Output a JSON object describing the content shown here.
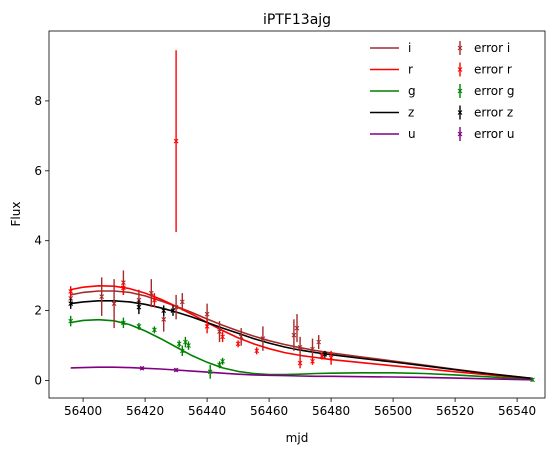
{
  "chart_data": {
    "type": "line",
    "title": "iPTF13ajg",
    "xlabel": "mjd",
    "ylabel": "Flux",
    "xlim": [
      56389,
      56549
    ],
    "ylim": [
      -0.5,
      10.0
    ],
    "xticks": [
      56400,
      56420,
      56440,
      56460,
      56480,
      56500,
      56520,
      56540
    ],
    "yticks": [
      0,
      2,
      4,
      6,
      8
    ],
    "grid": false,
    "legend_position": "upper-right",
    "legend_columns": 2,
    "series": [
      {
        "name": "i",
        "kind": "line",
        "color": "#a52a2a",
        "x": [
          56396,
          56400,
          56405,
          56410,
          56415,
          56420,
          56425,
          56430,
          56435,
          56440,
          56445,
          56450,
          56455,
          56460,
          56465,
          56470,
          56475,
          56480,
          56490,
          56500,
          56510,
          56520,
          56530,
          56545
        ],
        "y": [
          2.45,
          2.52,
          2.56,
          2.56,
          2.52,
          2.42,
          2.28,
          2.12,
          1.95,
          1.76,
          1.58,
          1.42,
          1.27,
          1.14,
          1.03,
          0.94,
          0.86,
          0.79,
          0.67,
          0.56,
          0.44,
          0.32,
          0.21,
          0.06
        ]
      },
      {
        "name": "r",
        "kind": "line",
        "color": "#ff0000",
        "x": [
          56396,
          56400,
          56405,
          56410,
          56415,
          56420,
          56425,
          56430,
          56435,
          56440,
          56445,
          56450,
          56455,
          56460,
          56465,
          56470,
          56475,
          56480,
          56490,
          56500,
          56510,
          56520,
          56530,
          56545
        ],
        "y": [
          2.6,
          2.67,
          2.71,
          2.7,
          2.63,
          2.5,
          2.33,
          2.12,
          1.9,
          1.66,
          1.43,
          1.22,
          1.05,
          0.91,
          0.8,
          0.72,
          0.66,
          0.6,
          0.51,
          0.42,
          0.34,
          0.25,
          0.17,
          0.05
        ]
      },
      {
        "name": "g",
        "kind": "line",
        "color": "#008000",
        "x": [
          56396,
          56400,
          56405,
          56410,
          56415,
          56420,
          56425,
          56430,
          56435,
          56440,
          56445,
          56450,
          56455,
          56460,
          56465,
          56470,
          56475,
          56480,
          56490,
          56500,
          56510,
          56520,
          56530,
          56545
        ],
        "y": [
          1.66,
          1.72,
          1.74,
          1.71,
          1.6,
          1.42,
          1.2,
          0.96,
          0.72,
          0.52,
          0.36,
          0.26,
          0.2,
          0.17,
          0.17,
          0.18,
          0.2,
          0.21,
          0.22,
          0.22,
          0.2,
          0.16,
          0.11,
          0.03
        ]
      },
      {
        "name": "z",
        "kind": "line",
        "color": "#000000",
        "x": [
          56396,
          56400,
          56405,
          56410,
          56415,
          56420,
          56425,
          56430,
          56435,
          56440,
          56445,
          56450,
          56455,
          56460,
          56465,
          56470,
          56475,
          56480,
          56490,
          56500,
          56510,
          56520,
          56530,
          56545
        ],
        "y": [
          2.2,
          2.25,
          2.28,
          2.28,
          2.25,
          2.18,
          2.08,
          1.96,
          1.82,
          1.66,
          1.5,
          1.35,
          1.2,
          1.07,
          0.96,
          0.87,
          0.8,
          0.74,
          0.63,
          0.53,
          0.42,
          0.31,
          0.2,
          0.06
        ]
      },
      {
        "name": "u",
        "kind": "line",
        "color": "#800080",
        "x": [
          56396,
          56400,
          56405,
          56410,
          56415,
          56420,
          56425,
          56430,
          56435,
          56440,
          56445,
          56450,
          56455,
          56460,
          56465,
          56470,
          56475,
          56480,
          56490,
          56500,
          56510,
          56520,
          56530,
          56545
        ],
        "y": [
          0.36,
          0.37,
          0.38,
          0.38,
          0.37,
          0.35,
          0.33,
          0.3,
          0.27,
          0.24,
          0.21,
          0.18,
          0.16,
          0.15,
          0.14,
          0.13,
          0.12,
          0.12,
          0.11,
          0.1,
          0.09,
          0.07,
          0.05,
          0.02
        ]
      },
      {
        "name": "error i",
        "kind": "errorbar",
        "color": "#a52a2a",
        "x": [
          56396,
          56406,
          56410,
          56413,
          56418,
          56422,
          56426,
          56430,
          56432,
          56440,
          56444,
          56451,
          56458,
          56468,
          56469,
          56470,
          56474,
          56476
        ],
        "y": [
          2.35,
          2.4,
          2.2,
          2.8,
          2.3,
          2.5,
          1.75,
          2.1,
          2.25,
          1.9,
          1.4,
          1.25,
          1.2,
          1.3,
          1.5,
          0.95,
          0.9,
          1.1
        ],
        "err": [
          0.25,
          0.55,
          0.7,
          0.35,
          0.3,
          0.4,
          0.35,
          0.35,
          0.25,
          0.3,
          0.3,
          0.25,
          0.35,
          0.45,
          0.4,
          0.3,
          0.3,
          0.2
        ]
      },
      {
        "name": "error r",
        "kind": "errorbar",
        "color": "#ff0000",
        "x": [
          56396,
          56413,
          56423,
          56430,
          56440,
          56445,
          56450,
          56456,
          56470,
          56474,
          56477,
          56480
        ],
        "y": [
          2.55,
          2.65,
          2.3,
          6.85,
          1.55,
          1.25,
          1.05,
          0.85,
          0.5,
          0.55,
          0.7,
          0.65
        ],
        "err": [
          0.15,
          0.2,
          0.2,
          2.6,
          0.2,
          0.15,
          0.1,
          0.1,
          0.15,
          0.1,
          0.1,
          0.2
        ]
      },
      {
        "name": "error g",
        "kind": "errorbar",
        "color": "#008000",
        "x": [
          56396,
          56413,
          56418,
          56423,
          56431,
          56432,
          56433,
          56434,
          56441,
          56444,
          56445,
          56545
        ],
        "y": [
          1.7,
          1.65,
          1.55,
          1.45,
          1.05,
          0.85,
          1.1,
          1.0,
          0.25,
          0.45,
          0.55,
          0.02
        ],
        "err": [
          0.15,
          0.15,
          0.1,
          0.1,
          0.1,
          0.15,
          0.15,
          0.12,
          0.2,
          0.1,
          0.1,
          0.05
        ]
      },
      {
        "name": "error z",
        "kind": "errorbar",
        "color": "#000000",
        "x": [
          56396,
          56418,
          56426,
          56429,
          56478
        ],
        "y": [
          2.2,
          2.1,
          2.0,
          2.0,
          0.75
        ],
        "err": [
          0.15,
          0.2,
          0.15,
          0.15,
          0.1
        ]
      },
      {
        "name": "error u",
        "kind": "errorbar",
        "color": "#800080",
        "x": [
          56419,
          56430
        ],
        "y": [
          0.35,
          0.3
        ],
        "err": [
          0.05,
          0.05
        ]
      }
    ]
  }
}
